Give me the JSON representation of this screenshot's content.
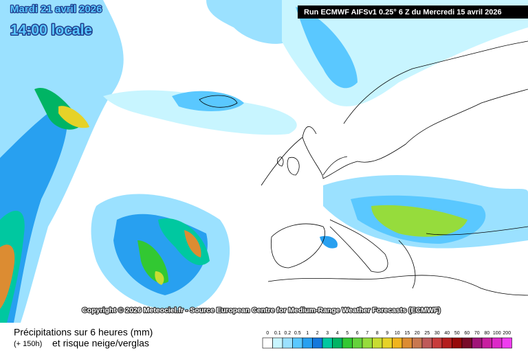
{
  "header": {
    "date": "Mardi 21 avril 2026",
    "time": "14:00 locale",
    "run": "Run ECMWF AIFSv1 0.25° 6 Z du Mercredi 15 avril 2026"
  },
  "copyright": "Copyright © 2026 Meteociel.fr - Source European Centre for Medium-Range Weather Forecasts (ECMWF)",
  "legend": {
    "title": "Précipitations sur 6 heures (mm)",
    "lead": "(+ 150h)",
    "subtitle": "et risque neige/verglas",
    "items": [
      {
        "value": 0,
        "color": "#ffffff"
      },
      {
        "value": 0.1,
        "color": "#c8f5ff"
      },
      {
        "value": 0.2,
        "color": "#9be1ff"
      },
      {
        "value": 0.5,
        "color": "#5ac8ff"
      },
      {
        "value": 1,
        "color": "#28a0f0"
      },
      {
        "value": 2,
        "color": "#1478dc"
      },
      {
        "value": 3,
        "color": "#00c8a0"
      },
      {
        "value": 4,
        "color": "#00b464"
      },
      {
        "value": 5,
        "color": "#32c832"
      },
      {
        "value": 6,
        "color": "#64d23c"
      },
      {
        "value": 7,
        "color": "#96dc3c"
      },
      {
        "value": 8,
        "color": "#c8dc32"
      },
      {
        "value": 9,
        "color": "#e6d228"
      },
      {
        "value": 10,
        "color": "#f0b41e"
      },
      {
        "value": 15,
        "color": "#dc8c32"
      },
      {
        "value": 20,
        "color": "#c87850"
      },
      {
        "value": 25,
        "color": "#be5a5a"
      },
      {
        "value": 30,
        "color": "#c83c3c"
      },
      {
        "value": 40,
        "color": "#b41e1e"
      },
      {
        "value": 50,
        "color": "#960a0a"
      },
      {
        "value": 60,
        "color": "#780a28"
      },
      {
        "value": 70,
        "color": "#a01478"
      },
      {
        "value": 80,
        "color": "#c81ea0"
      },
      {
        "value": 100,
        "color": "#dc28c8"
      },
      {
        "value": 200,
        "color": "#f03cf0"
      }
    ]
  }
}
